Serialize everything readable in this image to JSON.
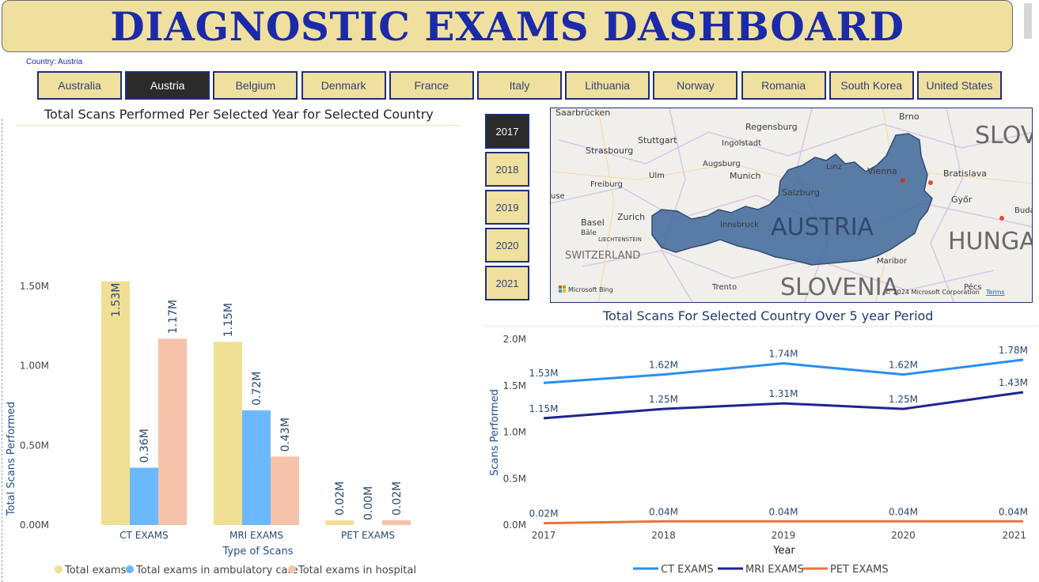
{
  "header": {
    "title": "DIAGNOSTIC EXAMS DASHBOARD"
  },
  "country_caption": "Country: Austria",
  "countries": [
    {
      "label": "Australia",
      "active": false
    },
    {
      "label": "Austria",
      "active": true
    },
    {
      "label": "Belgium",
      "active": false
    },
    {
      "label": "Denmark",
      "active": false
    },
    {
      "label": "France",
      "active": false
    },
    {
      "label": "Italy",
      "active": false
    },
    {
      "label": "Lithuania",
      "active": false
    },
    {
      "label": "Norway",
      "active": false
    },
    {
      "label": "Romania",
      "active": false
    },
    {
      "label": "South Korea",
      "active": false
    },
    {
      "label": "United States",
      "active": false
    }
  ],
  "years": [
    {
      "label": "2017",
      "active": true
    },
    {
      "label": "2018",
      "active": false
    },
    {
      "label": "2019",
      "active": false
    },
    {
      "label": "2020",
      "active": false
    },
    {
      "label": "2021",
      "active": false
    }
  ],
  "colors": {
    "banner": "#f0e0a0",
    "title_text": "#1a2aa8",
    "total": "#f0e095",
    "ambulatory": "#6cb8ff",
    "hospital": "#f5c2aa",
    "ct_line": "#2b8ef0",
    "mri_line": "#1e2590",
    "pet_line": "#e8743b",
    "austria_fill": "#3e679a"
  },
  "map": {
    "country_label": "AUSTRIA",
    "neighbors": [
      "SLOVENIA",
      "SWITZERLAND",
      "HUNGA",
      "SLOV"
    ],
    "cities": [
      "Saarbrücken",
      "Brno",
      "Regensburg",
      "Stuttgart",
      "Ingolstadt",
      "Strasbourg",
      "Augsburg",
      "Ulm",
      "Munich",
      "Linz",
      "Vienna",
      "Bratislava",
      "Freiburg",
      "Salzburg",
      "Győr",
      "Basel",
      "Zurich",
      "Innsbruck",
      "Buda",
      "Bâle",
      "LIECHTENSTEIN",
      "Maribor",
      "Trento",
      "Pécs",
      "use"
    ],
    "credits": [
      "Microsoft Bing",
      "© 2024 Microsoft Corporation",
      "Terms"
    ]
  },
  "chart_data": [
    {
      "type": "bar",
      "title": "Total Scans Performed Per Selected Year for Selected Country",
      "xlabel": "Type of Scans",
      "ylabel": "Total Scans Performed",
      "categories": [
        "CT EXAMS",
        "MRI EXAMS",
        "PET EXAMS"
      ],
      "ylim": [
        0,
        1.6
      ],
      "yticks": [
        "0.00M",
        "0.50M",
        "1.00M",
        "1.50M"
      ],
      "series": [
        {
          "name": "Total exams",
          "values": [
            1.53,
            1.15,
            0.02
          ],
          "labels": [
            "1.53M",
            "1.15M",
            "0.02M"
          ]
        },
        {
          "name": "Total exams in ambulatory care",
          "values": [
            0.36,
            0.72,
            0.0
          ],
          "labels": [
            "0.36M",
            "0.72M",
            "0.00M"
          ]
        },
        {
          "name": "Total exams in hospital",
          "values": [
            1.17,
            0.43,
            0.02
          ],
          "labels": [
            "1.17M",
            "0.43M",
            "0.02M"
          ]
        }
      ],
      "legend": "bottom"
    },
    {
      "type": "line",
      "title": "Total Scans For Selected Country Over 5 year Period",
      "xlabel": "Year",
      "ylabel": "Scans Performed",
      "x": [
        2017,
        2018,
        2019,
        2020,
        2021
      ],
      "ylim": [
        0,
        2.0
      ],
      "yticks": [
        "0.0M",
        "0.5M",
        "1.0M",
        "1.5M",
        "2.0M"
      ],
      "series": [
        {
          "name": "CT EXAMS",
          "values": [
            1.53,
            1.62,
            1.74,
            1.62,
            1.78
          ],
          "labels": [
            "1.53M",
            "1.62M",
            "1.74M",
            "1.62M",
            "1.78M"
          ]
        },
        {
          "name": "MRI EXAMS",
          "values": [
            1.15,
            1.25,
            1.31,
            1.25,
            1.43
          ],
          "labels": [
            "1.15M",
            "1.25M",
            "1.31M",
            "1.25M",
            "1.43M"
          ]
        },
        {
          "name": "PET EXAMS",
          "values": [
            0.02,
            0.04,
            0.04,
            0.04,
            0.04
          ],
          "labels": [
            "0.02M",
            "0.04M",
            "0.04M",
            "0.04M",
            "0.04M"
          ]
        }
      ],
      "legend": "bottom"
    }
  ]
}
